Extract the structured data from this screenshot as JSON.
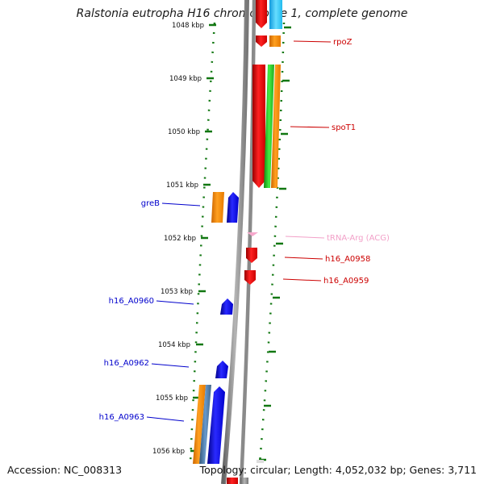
{
  "title": "Ralstonia eutropha H16 chromosome 1, complete genome",
  "footer": {
    "accession": "Accession: NC_008313",
    "topology": "Topology: circular; Length: 4,052,032 bp; Genes: 3,711"
  },
  "ticks": [
    {
      "label": "1048 kbp",
      "kbp": 1048
    },
    {
      "label": "1049 kbp",
      "kbp": 1049
    },
    {
      "label": "1050 kbp",
      "kbp": 1050
    },
    {
      "label": "1051 kbp",
      "kbp": 1051
    },
    {
      "label": "1052 kbp",
      "kbp": 1052
    },
    {
      "label": "1053 kbp",
      "kbp": 1053
    },
    {
      "label": "1054 kbp",
      "kbp": 1054
    },
    {
      "label": "1055 kbp",
      "kbp": 1055
    },
    {
      "label": "1056 kbp",
      "kbp": 1056
    }
  ],
  "genes": [
    {
      "name": "rpoZ",
      "strand": "+",
      "color": "#cc0000"
    },
    {
      "name": "spoT1",
      "strand": "+",
      "color": "#cc0000"
    },
    {
      "name": "greB",
      "strand": "-",
      "color": "#0000cc"
    },
    {
      "name": "tRNA-Arg (ACG)",
      "strand": "+",
      "color": "#f2a0c8"
    },
    {
      "name": "h16_A0958",
      "strand": "+",
      "color": "#cc0000"
    },
    {
      "name": "h16_A0959",
      "strand": "+",
      "color": "#cc0000"
    },
    {
      "name": "h16_A0960",
      "strand": "-",
      "color": "#0000cc"
    },
    {
      "name": "h16_A0962",
      "strand": "-",
      "color": "#0000cc"
    },
    {
      "name": "h16_A0963",
      "strand": "-",
      "color": "#0000cc"
    }
  ],
  "colors": {
    "cds_forward": "#ff0000",
    "cds_reverse": "#0000ff",
    "cog_orange": "#ff8800",
    "cog_green": "#22cc22",
    "cog_cyan": "#33ccff",
    "cog_steel": "#4477aa",
    "backbone": "#888888",
    "tick": "#117711"
  }
}
